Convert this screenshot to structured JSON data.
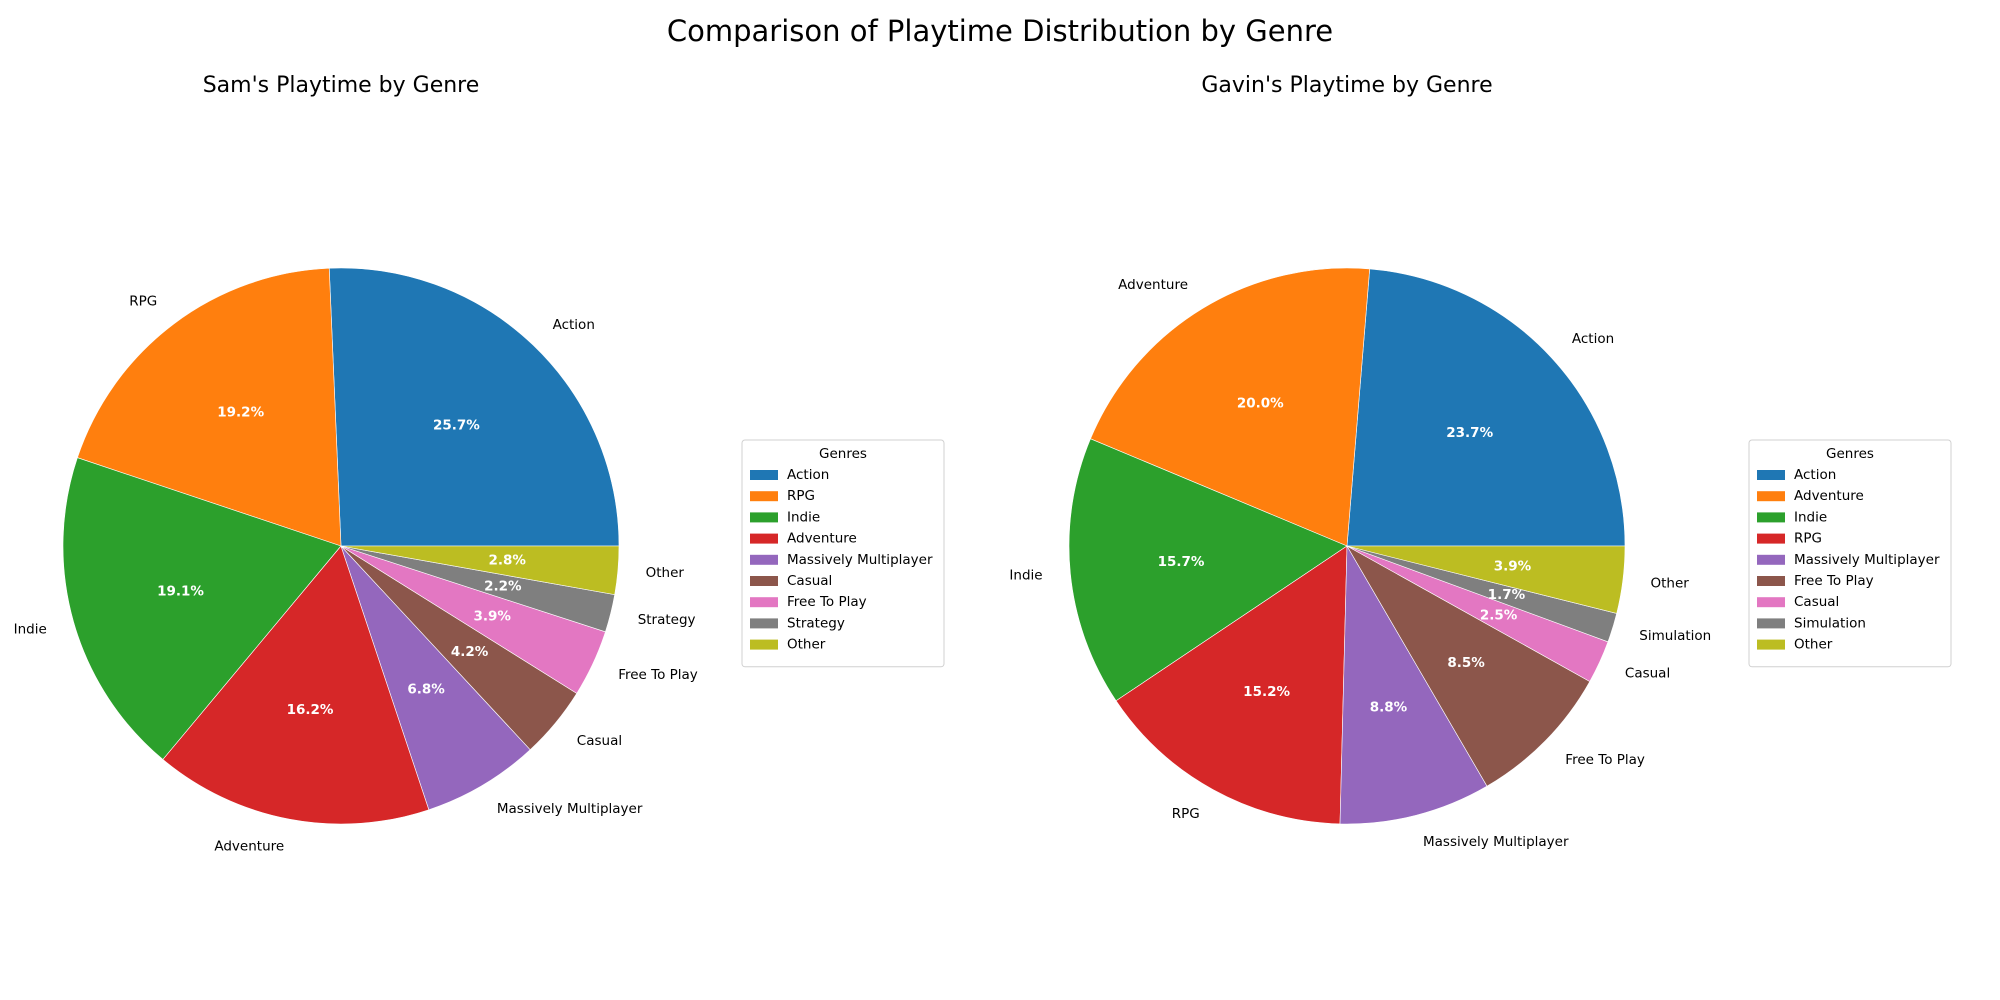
{
  "figure": {
    "title": "Comparison of Playtime Distribution by Genre"
  },
  "chart_data": [
    {
      "type": "pie",
      "title": "Sam's Playtime by Genre",
      "legend_title": "Genres",
      "legend_placement": "right",
      "start_angle": 0,
      "direction": "counterclockwise",
      "categories": [
        "Action",
        "RPG",
        "Indie",
        "Adventure",
        "Massively Multiplayer",
        "Casual",
        "Free To Play",
        "Strategy",
        "Other"
      ],
      "values": [
        25.7,
        19.2,
        19.1,
        16.2,
        6.8,
        4.2,
        3.9,
        2.2,
        2.8
      ],
      "pct_labels": [
        "25.7%",
        "19.2%",
        "19.1%",
        "16.2%",
        "6.8%",
        "4.2%",
        "3.9%",
        "2.2%",
        "2.8%"
      ],
      "colors": [
        "#1f77b4",
        "#ff7f0e",
        "#2ca02c",
        "#d62728",
        "#9467bd",
        "#8c564b",
        "#e377c2",
        "#7f7f7f",
        "#bcbd22"
      ]
    },
    {
      "type": "pie",
      "title": "Gavin's Playtime by Genre",
      "legend_title": "Genres",
      "legend_placement": "right",
      "start_angle": 0,
      "direction": "counterclockwise",
      "categories": [
        "Action",
        "Adventure",
        "Indie",
        "RPG",
        "Massively Multiplayer",
        "Free To Play",
        "Casual",
        "Simulation",
        "Other"
      ],
      "values": [
        23.7,
        20.0,
        15.7,
        15.2,
        8.8,
        8.5,
        2.5,
        1.7,
        3.9
      ],
      "pct_labels": [
        "23.7%",
        "20.0%",
        "15.7%",
        "15.2%",
        "8.8%",
        "8.5%",
        "2.5%",
        "1.7%",
        "3.9%"
      ],
      "colors": [
        "#1f77b4",
        "#ff7f0e",
        "#2ca02c",
        "#d62728",
        "#9467bd",
        "#8c564b",
        "#e377c2",
        "#7f7f7f",
        "#bcbd22"
      ]
    }
  ]
}
